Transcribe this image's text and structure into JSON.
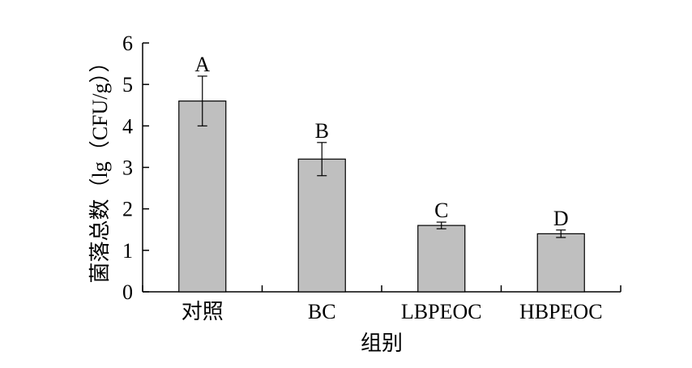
{
  "chart_data": {
    "type": "bar",
    "title": "",
    "xlabel": "组别",
    "ylabel": "菌落总数（lg（CFU/g））",
    "categories": [
      "对照",
      "BC",
      "LBPEOC",
      "HBPEOC"
    ],
    "values": [
      4.6,
      3.2,
      1.6,
      1.4
    ],
    "errors": [
      0.6,
      0.4,
      0.08,
      0.09
    ],
    "significance_labels": [
      "A",
      "B",
      "C",
      "D"
    ],
    "ylim": [
      0,
      6
    ],
    "yticks": [
      0,
      1,
      2,
      3,
      4,
      5,
      6
    ],
    "grid": false,
    "legend": "none",
    "bar_color": "#bfbfbf",
    "bar_edge_color": "#000000"
  }
}
